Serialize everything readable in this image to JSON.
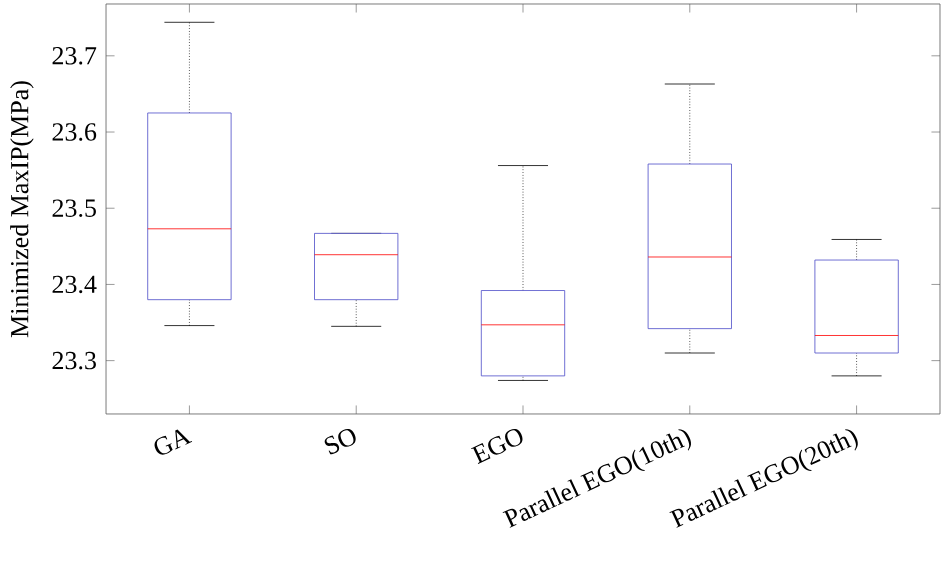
{
  "chart_data": {
    "type": "box",
    "ylabel": "Minimized MaxIP(MPa)",
    "categories": [
      "GA",
      "SO",
      "EGO",
      "Parallel EGO(10th)",
      "Parallel EGO(20th)"
    ],
    "series": [
      {
        "color": "#4b4bc8",
        "boxes": [
          {
            "low": 23.346,
            "q1": 23.38,
            "median": 23.473,
            "q3": 23.625,
            "high": 23.744
          },
          {
            "low": 23.345,
            "q1": 23.38,
            "median": 23.439,
            "q3": 23.467,
            "high": 23.467
          },
          {
            "low": 23.274,
            "q1": 23.28,
            "median": 23.347,
            "q3": 23.392,
            "high": 23.556
          },
          {
            "low": 23.31,
            "q1": 23.342,
            "median": 23.436,
            "q3": 23.558,
            "high": 23.663
          },
          {
            "low": 23.28,
            "q1": 23.31,
            "median": 23.333,
            "q3": 23.432,
            "high": 23.459
          }
        ]
      }
    ],
    "ylim": [
      23.23,
      23.768
    ],
    "yticks": [
      23.3,
      23.4,
      23.5,
      23.6,
      23.7
    ]
  }
}
